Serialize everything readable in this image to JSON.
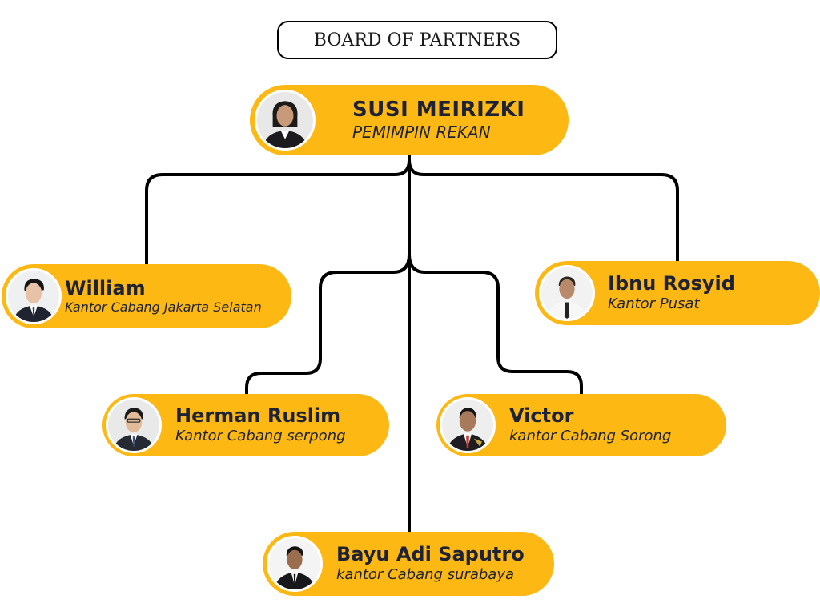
{
  "title": "BOARD OF PARTNERS",
  "leader": {
    "name": "SUSI MEIRIZKI",
    "role": "PEMIMPIN REKAN"
  },
  "partners": {
    "william": {
      "name": "William",
      "role": "Kantor Cabang Jakarta Selatan"
    },
    "ibnu": {
      "name": "Ibnu Rosyid",
      "role": "Kantor Pusat"
    },
    "herman": {
      "name": "Herman Ruslim",
      "role": "Kantor Cabang serpong"
    },
    "victor": {
      "name": "Victor",
      "role": "kantor Cabang Sorong"
    },
    "bayu": {
      "name": "Bayu Adi Saputro",
      "role": "kantor Cabang surabaya"
    }
  },
  "colors": {
    "card": "#FDB813",
    "text": "#1e2235",
    "line": "#000000"
  },
  "icons": {
    "photo": "person-photo-icon"
  }
}
